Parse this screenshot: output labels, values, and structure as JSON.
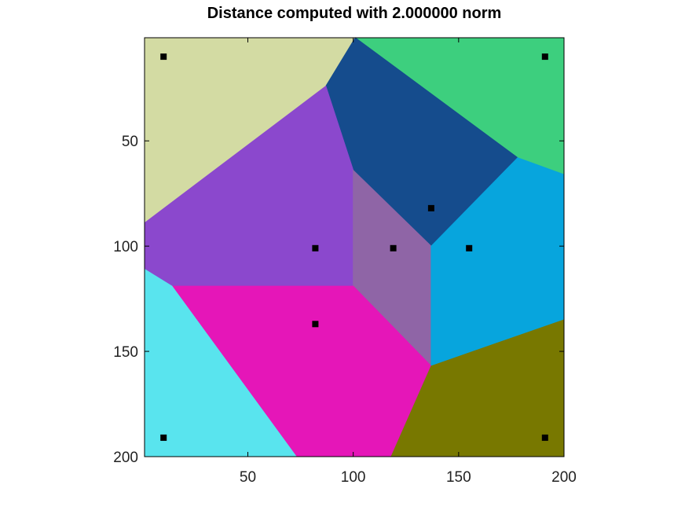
{
  "chart_data": {
    "type": "heatmap",
    "title": "Distance computed with 2.000000 norm",
    "xlabel": "",
    "ylabel": "",
    "xlim": [
      1,
      200
    ],
    "ylim": [
      1,
      200
    ],
    "y_inverted": true,
    "grid": false,
    "legend": "none",
    "xticks": [
      50,
      100,
      150,
      200
    ],
    "yticks": [
      50,
      100,
      150,
      200
    ],
    "seeds": [
      {
        "x": 10,
        "y": 10
      },
      {
        "x": 191,
        "y": 10
      },
      {
        "x": 137,
        "y": 82
      },
      {
        "x": 82,
        "y": 101
      },
      {
        "x": 119,
        "y": 101
      },
      {
        "x": 155,
        "y": 101
      },
      {
        "x": 82,
        "y": 137
      },
      {
        "x": 10,
        "y": 191
      },
      {
        "x": 191,
        "y": 191
      }
    ],
    "regions": [
      {
        "seed": 0,
        "color": "#d3dba3",
        "polygon": [
          [
            1,
            1
          ],
          [
            101,
            1
          ],
          [
            87,
            24
          ],
          [
            1,
            89
          ]
        ]
      },
      {
        "seed": 1,
        "color": "#3dcf7e",
        "polygon": [
          [
            101,
            1
          ],
          [
            200,
            1
          ],
          [
            200,
            66
          ],
          [
            178,
            58
          ]
        ]
      },
      {
        "seed": 2,
        "color": "#154c8d",
        "polygon": [
          [
            101,
            1
          ],
          [
            178,
            58
          ],
          [
            137,
            100
          ],
          [
            100,
            64
          ],
          [
            87,
            24
          ]
        ]
      },
      {
        "seed": 3,
        "color": "#8b48cd",
        "polygon": [
          [
            87,
            24
          ],
          [
            100,
            64
          ],
          [
            100,
            119
          ],
          [
            14,
            119
          ],
          [
            1,
            111
          ],
          [
            1,
            89
          ]
        ]
      },
      {
        "seed": 4,
        "color": "#8f65a6",
        "polygon": [
          [
            100,
            64
          ],
          [
            137,
            100
          ],
          [
            137,
            157
          ],
          [
            100,
            119
          ]
        ]
      },
      {
        "seed": 5,
        "color": "#07a5dd",
        "polygon": [
          [
            178,
            58
          ],
          [
            200,
            66
          ],
          [
            200,
            135
          ],
          [
            137,
            157
          ],
          [
            137,
            100
          ]
        ]
      },
      {
        "seed": 6,
        "color": "#e516b8",
        "polygon": [
          [
            14,
            119
          ],
          [
            100,
            119
          ],
          [
            137,
            157
          ],
          [
            118,
            200
          ],
          [
            73,
            200
          ]
        ]
      },
      {
        "seed": 7,
        "color": "#59e4ee",
        "polygon": [
          [
            1,
            111
          ],
          [
            14,
            119
          ],
          [
            73,
            200
          ],
          [
            1,
            200
          ]
        ]
      },
      {
        "seed": 8,
        "color": "#787800",
        "polygon": [
          [
            137,
            157
          ],
          [
            200,
            135
          ],
          [
            200,
            200
          ],
          [
            118,
            200
          ]
        ]
      }
    ]
  }
}
